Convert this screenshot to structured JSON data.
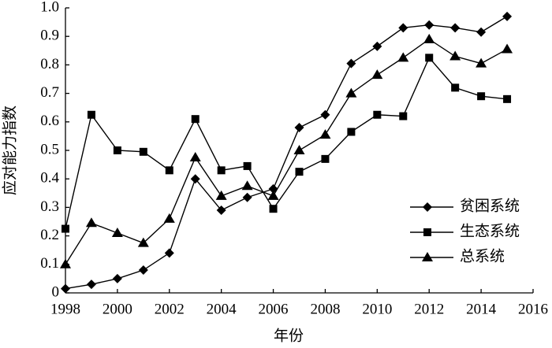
{
  "chart_data": {
    "type": "line",
    "x_label": "年份",
    "y_label": "应对能力指数",
    "x": [
      1998,
      1999,
      2000,
      2001,
      2002,
      2003,
      2004,
      2005,
      2006,
      2007,
      2008,
      2009,
      2010,
      2011,
      2012,
      2013,
      2014,
      2015
    ],
    "series": [
      {
        "name": "贫困系统",
        "color": "#000000",
        "marker": "diamond",
        "values": [
          0.015,
          0.03,
          0.05,
          0.08,
          0.14,
          0.4,
          0.29,
          0.335,
          0.365,
          0.58,
          0.625,
          0.805,
          0.865,
          0.93,
          0.94,
          0.93,
          0.915,
          0.97
        ]
      },
      {
        "name": "生态系统",
        "color": "#000000",
        "marker": "square",
        "values": [
          0.225,
          0.625,
          0.5,
          0.495,
          0.43,
          0.61,
          0.43,
          0.445,
          0.295,
          0.425,
          0.47,
          0.565,
          0.625,
          0.62,
          0.825,
          0.72,
          0.69,
          0.68
        ]
      },
      {
        "name": "总系统",
        "color": "#000000",
        "marker": "triangle",
        "values": [
          0.1,
          0.245,
          0.21,
          0.175,
          0.26,
          0.475,
          0.34,
          0.375,
          0.34,
          0.5,
          0.555,
          0.7,
          0.765,
          0.825,
          0.89,
          0.83,
          0.805,
          0.855
        ]
      }
    ],
    "xlim": [
      1998,
      2016
    ],
    "xticks": [
      1998,
      2000,
      2002,
      2004,
      2006,
      2008,
      2010,
      2012,
      2014,
      2016
    ],
    "ylim": [
      0,
      1
    ],
    "yticks": [
      0,
      0.1,
      0.2,
      0.3,
      0.4,
      0.5,
      0.6,
      0.7,
      0.8,
      0.9,
      {
        "value": 1,
        "label": "1.0"
      }
    ],
    "grid": false,
    "legend": "lower right"
  }
}
